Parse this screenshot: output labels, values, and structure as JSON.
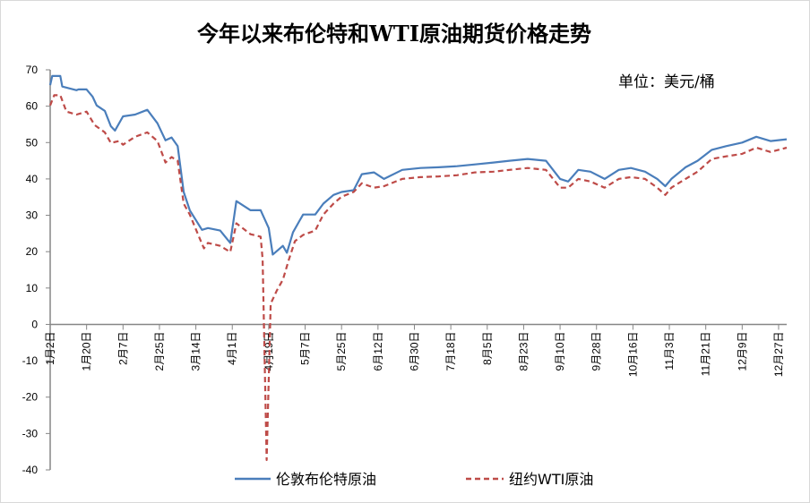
{
  "chart_data": {
    "type": "line",
    "title": "今年以来布伦特和WTI原油期货价格走势",
    "unit_label": "单位：美元/桶",
    "xlabel": "",
    "ylabel": "",
    "ylim": [
      -40,
      70
    ],
    "yticks": [
      70,
      60,
      50,
      40,
      30,
      20,
      10,
      0,
      -10,
      -20,
      -30,
      -40
    ],
    "x_unit": "days since Jan 2",
    "xlim": [
      0,
      364
    ],
    "xtick_labels": [
      "1月2日",
      "1月20日",
      "2月7日",
      "2月25日",
      "3月14日",
      "4月1日",
      "4月19日",
      "5月7日",
      "5月25日",
      "6月12日",
      "6月30日",
      "7月18日",
      "8月5日",
      "8月23日",
      "9月10日",
      "9月28日",
      "10月16日",
      "11月3日",
      "11月21日",
      "12月9日",
      "12月27日"
    ],
    "xtick_step_days": 18,
    "grid": false,
    "legend_position": "bottom",
    "series": [
      {
        "name": "伦敦布伦特原油",
        "color": "#4a7ebb",
        "style": "solid",
        "points": [
          [
            0,
            65.8
          ],
          [
            1,
            68.3
          ],
          [
            5,
            68.3
          ],
          [
            6,
            65.4
          ],
          [
            13,
            64.4
          ],
          [
            14,
            64.6
          ],
          [
            18,
            64.6
          ],
          [
            21,
            62.6
          ],
          [
            23,
            60.2
          ],
          [
            27,
            58.7
          ],
          [
            30,
            54.5
          ],
          [
            32,
            53.3
          ],
          [
            36,
            57.2
          ],
          [
            42,
            57.7
          ],
          [
            48,
            59
          ],
          [
            53,
            55.3
          ],
          [
            57,
            50.6
          ],
          [
            60,
            51.4
          ],
          [
            63,
            49
          ],
          [
            66,
            36.4
          ],
          [
            69,
            31.4
          ],
          [
            75,
            26
          ],
          [
            78,
            26.5
          ],
          [
            84,
            25.8
          ],
          [
            89,
            22.4
          ],
          [
            92,
            33.9
          ],
          [
            99,
            31.4
          ],
          [
            104,
            31.4
          ],
          [
            108,
            26.5
          ],
          [
            110,
            19.2
          ],
          [
            115,
            21.6
          ],
          [
            117,
            19.7
          ],
          [
            120,
            25.3
          ],
          [
            123,
            28.3
          ],
          [
            125,
            30.2
          ],
          [
            131,
            30.2
          ],
          [
            135,
            33.2
          ],
          [
            140,
            35.6
          ],
          [
            144,
            36.4
          ],
          [
            150,
            36.9
          ],
          [
            154,
            41.3
          ],
          [
            160,
            41.8
          ],
          [
            165,
            40
          ],
          [
            174,
            42.5
          ],
          [
            183,
            43
          ],
          [
            192,
            43.2
          ],
          [
            201,
            43.5
          ],
          [
            210,
            44
          ],
          [
            219,
            44.5
          ],
          [
            227,
            45
          ],
          [
            236,
            45.5
          ],
          [
            245,
            45
          ],
          [
            252,
            40
          ],
          [
            256,
            39.3
          ],
          [
            261,
            42.5
          ],
          [
            267,
            42
          ],
          [
            274,
            40
          ],
          [
            281,
            42.5
          ],
          [
            287,
            43
          ],
          [
            294,
            42
          ],
          [
            300,
            40
          ],
          [
            304,
            38
          ],
          [
            307,
            40
          ],
          [
            314,
            43.2
          ],
          [
            320,
            45
          ],
          [
            327,
            48
          ],
          [
            334,
            49
          ],
          [
            342,
            50
          ],
          [
            349,
            51.6
          ],
          [
            356,
            50.4
          ],
          [
            364,
            50.9
          ]
        ]
      },
      {
        "name": "纽约WTI原油",
        "color": "#be4b48",
        "style": "dashed",
        "points": [
          [
            0,
            60.2
          ],
          [
            2,
            63
          ],
          [
            5,
            63
          ],
          [
            8,
            58.5
          ],
          [
            13,
            57.7
          ],
          [
            18,
            58.5
          ],
          [
            22,
            54.8
          ],
          [
            27,
            52.8
          ],
          [
            30,
            49.9
          ],
          [
            34,
            50.4
          ],
          [
            36,
            49.4
          ],
          [
            42,
            51.6
          ],
          [
            48,
            52.8
          ],
          [
            53,
            50.4
          ],
          [
            57,
            44.5
          ],
          [
            60,
            46
          ],
          [
            63,
            45
          ],
          [
            66,
            33.2
          ],
          [
            69,
            30.2
          ],
          [
            73,
            24.8
          ],
          [
            76,
            20.9
          ],
          [
            78,
            22.4
          ],
          [
            84,
            21.6
          ],
          [
            89,
            19.9
          ],
          [
            92,
            27.8
          ],
          [
            99,
            24.8
          ],
          [
            104,
            24.1
          ],
          [
            105,
            17.9
          ],
          [
            107,
            -37.3
          ],
          [
            109,
            5.7
          ],
          [
            112,
            9.3
          ],
          [
            115,
            12.3
          ],
          [
            118,
            17.9
          ],
          [
            121,
            22.9
          ],
          [
            125,
            24.6
          ],
          [
            131,
            25.8
          ],
          [
            135,
            30.2
          ],
          [
            140,
            33.2
          ],
          [
            144,
            35.1
          ],
          [
            150,
            36.4
          ],
          [
            154,
            38.8
          ],
          [
            160,
            37.6
          ],
          [
            165,
            38
          ],
          [
            174,
            40
          ],
          [
            183,
            40.5
          ],
          [
            192,
            40.7
          ],
          [
            201,
            41
          ],
          [
            210,
            41.8
          ],
          [
            219,
            42
          ],
          [
            227,
            42.5
          ],
          [
            236,
            43
          ],
          [
            245,
            42.5
          ],
          [
            252,
            37.6
          ],
          [
            256,
            37.6
          ],
          [
            261,
            40
          ],
          [
            267,
            39.3
          ],
          [
            274,
            37.6
          ],
          [
            281,
            40
          ],
          [
            287,
            40.5
          ],
          [
            294,
            40
          ],
          [
            300,
            37.6
          ],
          [
            304,
            35.6
          ],
          [
            307,
            37.6
          ],
          [
            314,
            40
          ],
          [
            320,
            42
          ],
          [
            327,
            45.5
          ],
          [
            334,
            46.2
          ],
          [
            342,
            46.9
          ],
          [
            349,
            48.6
          ],
          [
            356,
            47.4
          ],
          [
            364,
            48.6
          ]
        ]
      }
    ]
  }
}
